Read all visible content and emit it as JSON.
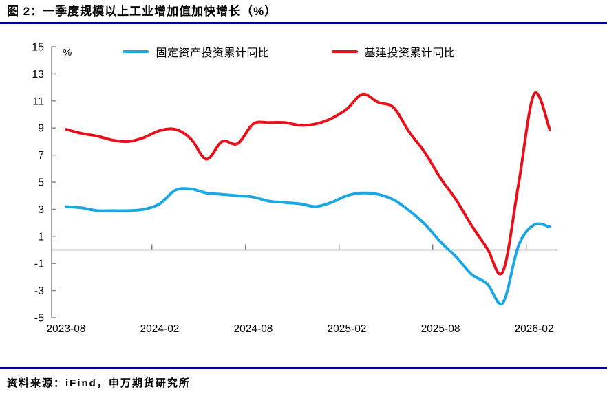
{
  "title": "图 2：一季度规模以上工业增加值加快增长（%）",
  "source": "资料来源：iFind，申万期货研究所",
  "colors": {
    "rule_navy": "#00008b",
    "axis_gray": "#808080",
    "series_blue": "#1ba7e3",
    "series_red": "#e8111a",
    "text": "#000000"
  },
  "chart_data": {
    "type": "line",
    "title": "一季度规模以上工业增加值加快增长（%）",
    "unit_label": "%",
    "xlabel": "",
    "ylabel": "",
    "ylim": [
      -5,
      15
    ],
    "y_tick_step": 2,
    "grid": false,
    "legend_position": "top",
    "x": [
      "2023-08",
      "2023-09",
      "2023-10",
      "2023-11",
      "2023-12",
      "2024-01",
      "2024-02",
      "2024-03",
      "2024-04",
      "2024-05",
      "2024-06",
      "2024-07",
      "2024-08",
      "2024-09",
      "2024-10",
      "2024-11",
      "2024-12",
      "2025-01",
      "2025-02",
      "2025-03",
      "2025-04",
      "2025-05",
      "2025-06",
      "2025-07",
      "2025-08",
      "2025-09",
      "2025-10",
      "2025-11",
      "2025-12",
      "2026-01",
      "2026-02",
      "2026-03"
    ],
    "x_tick_labels": [
      "2023-08",
      "2024-02",
      "2024-08",
      "2025-02",
      "2025-08",
      "2026-02"
    ],
    "series": [
      {
        "name": "固定资产投资累计同比",
        "color": "#1ba7e3",
        "values": [
          3.2,
          3.1,
          2.9,
          2.9,
          2.9,
          3.0,
          3.4,
          4.4,
          4.5,
          4.2,
          4.1,
          4.0,
          3.9,
          3.6,
          3.5,
          3.4,
          3.2,
          3.5,
          4.0,
          4.2,
          4.1,
          3.7,
          2.9,
          1.9,
          0.6,
          -0.5,
          -1.8,
          -2.5,
          -3.9,
          0.3,
          1.85,
          1.7
        ]
      },
      {
        "name": "基建投资累计同比",
        "color": "#e8111a",
        "values": [
          8.9,
          8.6,
          8.4,
          8.1,
          8.0,
          8.3,
          8.8,
          8.9,
          8.2,
          6.7,
          8.0,
          7.85,
          9.3,
          9.4,
          9.4,
          9.2,
          9.3,
          9.7,
          10.4,
          11.5,
          10.9,
          10.5,
          8.7,
          7.2,
          5.3,
          3.7,
          1.8,
          0.1,
          -1.6,
          4.8,
          11.5,
          8.9
        ]
      }
    ]
  }
}
